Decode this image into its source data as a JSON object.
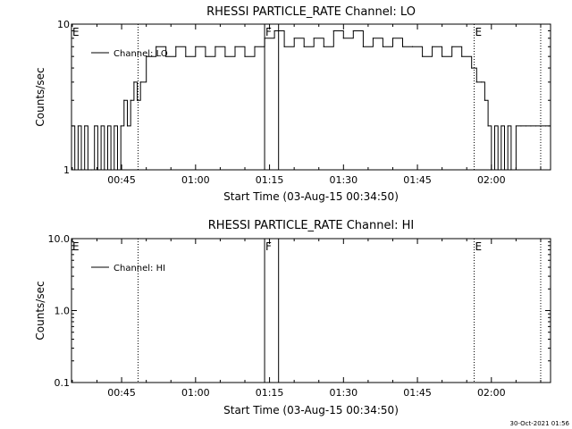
{
  "chart_data": [
    {
      "type": "line",
      "title": "RHESSI PARTICLE_RATE Channel: LO",
      "xlabel": "Start Time (03-Aug-15 00:34:50)",
      "ylabel": "Counts/sec",
      "yscale": "log",
      "xlim": [
        "00:34:50",
        "02:12:00"
      ],
      "ylim": [
        1,
        10
      ],
      "x_ticks": [
        "00:45",
        "01:00",
        "01:15",
        "01:30",
        "01:45",
        "02:00"
      ],
      "y_ticks": [
        "1",
        "10"
      ],
      "legend": {
        "placement": "top-left",
        "entries": [
          "Channel: LO"
        ]
      },
      "grid": false,
      "markers": [
        {
          "label": "E",
          "time": "00:34:50",
          "style": "none"
        },
        {
          "time": "00:48:20",
          "style": "dotted"
        },
        {
          "label": "F",
          "time": "01:14:00",
          "style": "solid"
        },
        {
          "time": "01:16:50",
          "style": "solid"
        },
        {
          "label": "E",
          "time": "01:56:30",
          "style": "dotted"
        },
        {
          "time": "02:10:00",
          "style": "dotted"
        }
      ],
      "series": [
        {
          "x": [
            "00:34:50",
            "00:35:30",
            "00:36:10",
            "00:36:50",
            "00:37:30",
            "00:38:10",
            "00:38:50",
            "00:39:30",
            "00:40:10",
            "00:40:50",
            "00:41:30",
            "00:42:10",
            "00:42:50",
            "00:43:30",
            "00:44:10",
            "00:44:50",
            "00:45:30",
            "00:46:10",
            "00:46:50",
            "00:47:30",
            "00:48:10",
            "00:48:50",
            "00:50:00",
            "00:52:00",
            "00:54:00",
            "00:56:00",
            "00:58:00",
            "01:00:00",
            "01:02:00",
            "01:04:00",
            "01:06:00",
            "01:08:00",
            "01:10:00",
            "01:12:00",
            "01:14:00",
            "01:16:00",
            "01:18:00",
            "01:20:00",
            "01:22:00",
            "01:24:00",
            "01:26:00",
            "01:28:00",
            "01:30:00",
            "01:32:00",
            "01:34:00",
            "01:36:00",
            "01:38:00",
            "01:40:00",
            "01:42:00",
            "01:44:00",
            "01:46:00",
            "01:48:00",
            "01:50:00",
            "01:52:00",
            "01:54:00",
            "01:56:00",
            "01:57:00",
            "01:58:00",
            "01:58:40",
            "01:59:20",
            "02:00:00",
            "02:00:40",
            "02:01:20",
            "02:02:00",
            "02:02:40",
            "02:03:20",
            "02:04:00",
            "02:05:00",
            "02:06:00",
            "02:07:00",
            "02:08:00",
            "02:09:00",
            "02:10:00",
            "02:11:00"
          ],
          "y": [
            2,
            1,
            2,
            1,
            2,
            1,
            1,
            2,
            1,
            2,
            1,
            2,
            1,
            2,
            1,
            2,
            3,
            2,
            3,
            4,
            3,
            4,
            6,
            7,
            6,
            7,
            6,
            7,
            6,
            7,
            6,
            7,
            6,
            7,
            8,
            9,
            7,
            8,
            7,
            8,
            7,
            9,
            8,
            9,
            7,
            8,
            7,
            8,
            7,
            7,
            6,
            7,
            6,
            7,
            6,
            5,
            4,
            4,
            3,
            2,
            1,
            2,
            1,
            2,
            1,
            2,
            1,
            2,
            2,
            2,
            2,
            2,
            2,
            2
          ]
        }
      ]
    },
    {
      "type": "line",
      "title": "RHESSI PARTICLE_RATE Channel: HI",
      "xlabel": "Start Time (03-Aug-15 00:34:50)",
      "ylabel": "Counts/sec",
      "yscale": "log",
      "xlim": [
        "00:34:50",
        "02:12:00"
      ],
      "ylim": [
        0.1,
        10
      ],
      "x_ticks": [
        "00:45",
        "01:00",
        "01:15",
        "01:30",
        "01:45",
        "02:00"
      ],
      "y_ticks": [
        "10.0",
        "1.0",
        "0.1"
      ],
      "legend": {
        "placement": "top-left",
        "entries": [
          "Channel: HI"
        ]
      },
      "grid": false,
      "markers": [
        {
          "label": "E",
          "time": "00:34:50",
          "style": "none"
        },
        {
          "time": "00:48:20",
          "style": "dotted"
        },
        {
          "label": "F",
          "time": "01:14:00",
          "style": "solid"
        },
        {
          "time": "01:16:50",
          "style": "solid"
        },
        {
          "label": "E",
          "time": "01:56:30",
          "style": "dotted"
        },
        {
          "time": "02:10:00",
          "style": "dotted"
        }
      ],
      "series": []
    }
  ],
  "footer": {
    "timestamp": "30-Oct-2021 01:56"
  }
}
